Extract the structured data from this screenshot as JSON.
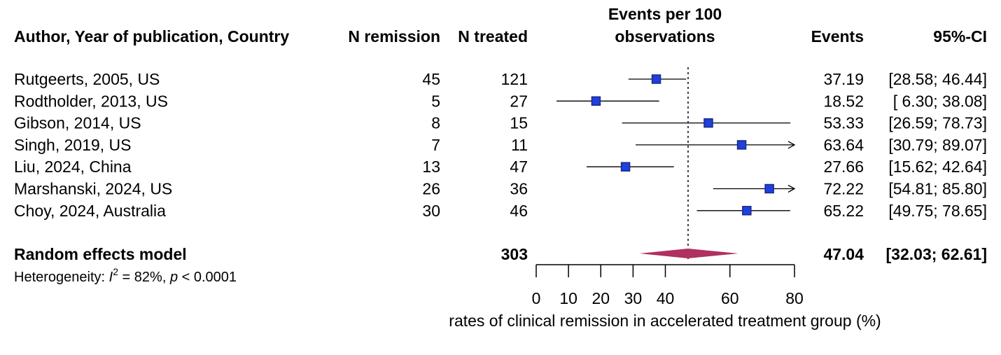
{
  "chart_data": {
    "type": "forest",
    "headers": {
      "study": "Author, Year of publication, Country",
      "n_remission": "N remission",
      "n_treated": "N treated",
      "plot_line1": "Events per 100",
      "plot_line2": "observations",
      "events": "Events",
      "ci": "95%-CI"
    },
    "studies": [
      {
        "label": "Rutgeerts, 2005, US",
        "n_remission": "45",
        "n_treated": "121",
        "events": "37.19",
        "ci": "[28.58; 46.44]",
        "est": 37.19,
        "lo": 28.58,
        "hi": 46.44
      },
      {
        "label": "Rodtholder, 2013, US",
        "n_remission": "5",
        "n_treated": "27",
        "events": "18.52",
        "ci": "[ 6.30; 38.08]",
        "est": 18.52,
        "lo": 6.3,
        "hi": 38.08
      },
      {
        "label": "Gibson, 2014, US",
        "n_remission": "8",
        "n_treated": "15",
        "events": "53.33",
        "ci": "[26.59; 78.73]",
        "est": 53.33,
        "lo": 26.59,
        "hi": 78.73
      },
      {
        "label": "Singh, 2019, US",
        "n_remission": "7",
        "n_treated": "11",
        "events": "63.64",
        "ci": "[30.79; 89.07]",
        "est": 63.64,
        "lo": 30.79,
        "hi": 89.07
      },
      {
        "label": "Liu, 2024, China",
        "n_remission": "13",
        "n_treated": "47",
        "events": "27.66",
        "ci": "[15.62; 42.64]",
        "est": 27.66,
        "lo": 15.62,
        "hi": 42.64
      },
      {
        "label": "Marshanski, 2024, US",
        "n_remission": "26",
        "n_treated": "36",
        "events": "72.22",
        "ci": "[54.81; 85.80]",
        "est": 72.22,
        "lo": 54.81,
        "hi": 85.8
      },
      {
        "label": "Choy, 2024, Australia",
        "n_remission": "30",
        "n_treated": "46",
        "events": "65.22",
        "ci": "[49.75; 78.65]",
        "est": 65.22,
        "lo": 49.75,
        "hi": 78.65
      }
    ],
    "pooled": {
      "label": "Random effects model",
      "n_treated": "303",
      "events": "47.04",
      "ci": "[32.03; 62.61]",
      "est": 47.04,
      "lo": 32.03,
      "hi": 62.61
    },
    "heterogeneity": {
      "prefix": "Heterogeneity: ",
      "i_symbol": "I",
      "i_sup": "2",
      "i_value": " = 82%, ",
      "p_symbol": "p",
      "p_value": " < 0.0001"
    },
    "xaxis": {
      "ticks": [
        0,
        10,
        20,
        30,
        40,
        60,
        80
      ],
      "xlim": [
        0,
        80
      ],
      "label": "rates of clinical remission in accelerated treatment group (%)"
    },
    "reference_line": 47.04,
    "colors": {
      "square": "#1f3fe0",
      "square_border": "#1a2a80",
      "diamond": "#b03060",
      "line": "#000000"
    }
  }
}
